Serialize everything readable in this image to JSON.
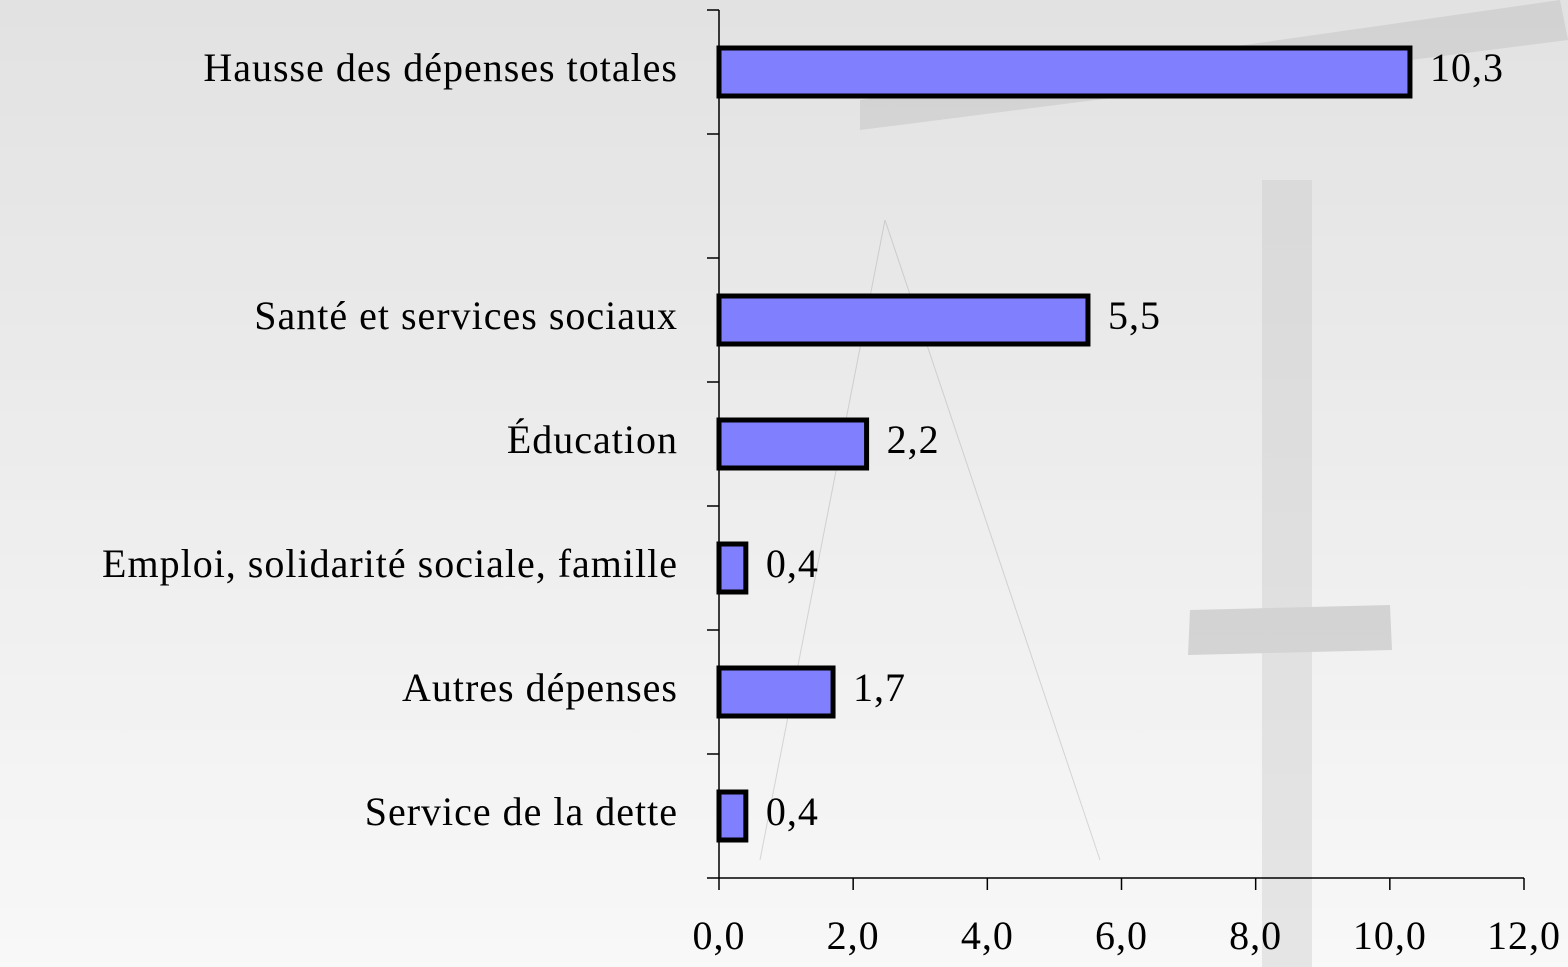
{
  "chart_data": {
    "type": "hbar",
    "categories": [
      "Hausse des dépenses totales",
      null,
      "Santé et services sociaux",
      "Éducation",
      "Emploi, solidarité sociale, famille",
      "Autres dépenses",
      "Service de la dette"
    ],
    "values": [
      10.3,
      null,
      5.5,
      2.2,
      0.4,
      1.7,
      0.4
    ],
    "value_labels": [
      "10,3",
      null,
      "5,5",
      "2,2",
      "0,4",
      "1,7",
      "0,4"
    ],
    "color": "#8080ff",
    "xlim": [
      0,
      12
    ],
    "xticks": [
      {
        "value": 0,
        "label": "0,0"
      },
      {
        "value": 2,
        "label": "2,0"
      },
      {
        "value": 4,
        "label": "4,0"
      },
      {
        "value": 6,
        "label": "6,0"
      },
      {
        "value": 8,
        "label": "8,0"
      },
      {
        "value": 10,
        "label": "10,0"
      },
      {
        "value": 12,
        "label": "12,0"
      }
    ]
  }
}
